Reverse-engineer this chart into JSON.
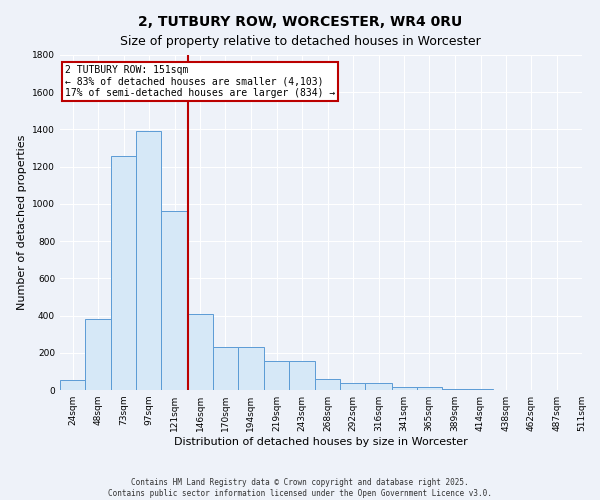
{
  "title": "2, TUTBURY ROW, WORCESTER, WR4 0RU",
  "subtitle": "Size of property relative to detached houses in Worcester",
  "xlabel": "Distribution of detached houses by size in Worcester",
  "ylabel": "Number of detached properties",
  "bin_labels": [
    "24sqm",
    "48sqm",
    "73sqm",
    "97sqm",
    "121sqm",
    "146sqm",
    "170sqm",
    "194sqm",
    "219sqm",
    "243sqm",
    "268sqm",
    "292sqm",
    "316sqm",
    "341sqm",
    "365sqm",
    "389sqm",
    "414sqm",
    "438sqm",
    "462sqm",
    "487sqm",
    "511sqm"
  ],
  "bin_lefts": [
    24,
    48,
    73,
    97,
    121,
    146,
    170,
    194,
    219,
    243,
    268,
    292,
    316,
    341,
    365,
    389,
    414,
    438,
    462,
    487
  ],
  "bin_widths": [
    24,
    25,
    24,
    24,
    25,
    24,
    24,
    25,
    24,
    25,
    24,
    24,
    25,
    24,
    24,
    25,
    24,
    24,
    25,
    24
  ],
  "bar_heights": [
    55,
    380,
    1260,
    1390,
    960,
    410,
    230,
    230,
    155,
    155,
    60,
    40,
    40,
    15,
    15,
    5,
    5,
    2,
    2,
    1
  ],
  "bar_color": "#d6e8f7",
  "bar_edge_color": "#5b9bd5",
  "property_line_x": 146,
  "property_line_color": "#bb0000",
  "annotation_line1": "2 TUTBURY ROW: 151sqm",
  "annotation_line2": "← 83% of detached houses are smaller (4,103)",
  "annotation_line3": "17% of semi-detached houses are larger (834) →",
  "annotation_box_color": "#bb0000",
  "ylim": [
    0,
    1800
  ],
  "yticks": [
    0,
    200,
    400,
    600,
    800,
    1000,
    1200,
    1400,
    1600,
    1800
  ],
  "xmin": 24,
  "xmax": 511,
  "footer_line1": "Contains HM Land Registry data © Crown copyright and database right 2025.",
  "footer_line2": "Contains public sector information licensed under the Open Government Licence v3.0.",
  "bg_color": "#eef2f9",
  "plot_bg_color": "#eef2f9",
  "grid_color": "#ffffff",
  "title_fontsize": 10,
  "subtitle_fontsize": 9,
  "tick_fontsize": 6.5,
  "label_fontsize": 8,
  "footer_fontsize": 5.5
}
